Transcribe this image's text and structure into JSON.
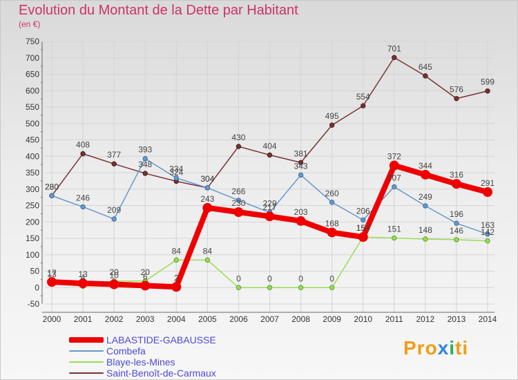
{
  "title": "Evolution du Montant de la Dette par Habitant",
  "subtitle": "(en €)",
  "brand": "Proxiti",
  "chart_data": {
    "type": "line",
    "title": "Evolution du Montant de la Dette par Habitant",
    "subtitle": "(en €)",
    "x": [
      "2000",
      "2001",
      "2002",
      "2003",
      "2004",
      "2005",
      "2006",
      "2007",
      "2008",
      "2009",
      "2010",
      "2011",
      "2012",
      "2013",
      "2014"
    ],
    "ylim": [
      -50,
      750
    ],
    "yticks": [
      -50,
      0,
      50,
      100,
      150,
      200,
      250,
      300,
      350,
      400,
      450,
      500,
      550,
      600,
      650,
      700,
      750
    ],
    "grid": true,
    "legend_position": "bottom-left",
    "series": [
      {
        "name": "LABASTIDE-GABAUSSE",
        "color": "#ee0000",
        "values": [
          17,
          13,
          10,
          6,
          2,
          243,
          230,
          217,
          203,
          168,
          154,
          372,
          344,
          316,
          291
        ]
      },
      {
        "name": "Combefa",
        "color": "#6699cc",
        "values": [
          280,
          246,
          209,
          393,
          334,
          304,
          266,
          229,
          343,
          260,
          206,
          307,
          249,
          196,
          163
        ]
      },
      {
        "name": "Blaye-les-Mines",
        "color": "#99dd55",
        "values": [
          13,
          4,
          20,
          20,
          84,
          84,
          0,
          0,
          0,
          0,
          154,
          151,
          148,
          146,
          142
        ]
      },
      {
        "name": "Saint-Benoît-de-Carmaux",
        "color": "#773333",
        "values": [
          280,
          408,
          377,
          348,
          324,
          304,
          430,
          404,
          381,
          495,
          554,
          701,
          645,
          576,
          599
        ]
      }
    ]
  }
}
